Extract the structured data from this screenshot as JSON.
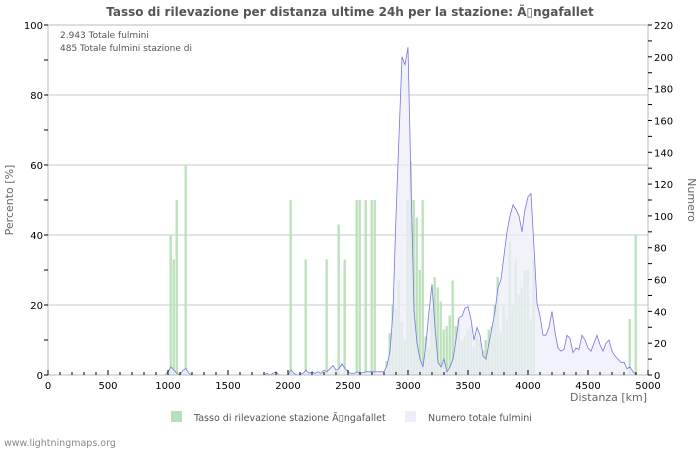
{
  "chart_data": {
    "type": "bar",
    "title": "Tasso di rilevazione per distanza ultime 24h per la stazione: Ã▯ngafallet",
    "xlabel": "Distanza   [km]",
    "ylabel": "Percento   [%]",
    "y2label": "Numero",
    "xlim": [
      0,
      5000
    ],
    "ylim": [
      0,
      100
    ],
    "y2lim": [
      0,
      220
    ],
    "x_ticks": [
      0,
      500,
      1000,
      1500,
      2000,
      2500,
      3000,
      3500,
      4000,
      4500,
      5000
    ],
    "y_ticks": [
      0,
      20,
      40,
      60,
      80,
      100
    ],
    "y2_ticks": [
      0,
      20,
      40,
      60,
      80,
      100,
      120,
      140,
      160,
      180,
      200,
      220
    ],
    "grid": true,
    "legend_position": "bottom",
    "bin_width_km": 25,
    "series": [
      {
        "name": "Tasso di rilevazione stazione Ã▯ngafallet",
        "type": "bar",
        "axis": "left",
        "color": "#b8e0b8",
        "points": [
          [
            1025,
            40
          ],
          [
            1050,
            33
          ],
          [
            1075,
            50
          ],
          [
            1150,
            60
          ],
          [
            2025,
            50
          ],
          [
            2150,
            33
          ],
          [
            2325,
            33
          ],
          [
            2425,
            43
          ],
          [
            2475,
            33
          ],
          [
            2575,
            50
          ],
          [
            2600,
            50
          ],
          [
            2650,
            50
          ],
          [
            2700,
            50
          ],
          [
            2725,
            50
          ],
          [
            2825,
            4
          ],
          [
            2850,
            12
          ],
          [
            2875,
            20
          ],
          [
            2900,
            19
          ],
          [
            2925,
            27
          ],
          [
            2950,
            15
          ],
          [
            2975,
            10
          ],
          [
            3000,
            50
          ],
          [
            3025,
            61
          ],
          [
            3050,
            50
          ],
          [
            3075,
            45
          ],
          [
            3100,
            30
          ],
          [
            3125,
            50
          ],
          [
            3150,
            11
          ],
          [
            3175,
            8
          ],
          [
            3200,
            19
          ],
          [
            3225,
            28
          ],
          [
            3250,
            25
          ],
          [
            3275,
            21
          ],
          [
            3300,
            13
          ],
          [
            3325,
            14
          ],
          [
            3350,
            17
          ],
          [
            3375,
            27
          ],
          [
            3400,
            14
          ],
          [
            3425,
            16
          ],
          [
            3450,
            10
          ],
          [
            3475,
            11
          ],
          [
            3500,
            13
          ],
          [
            3525,
            14
          ],
          [
            3550,
            8
          ],
          [
            3575,
            11
          ],
          [
            3600,
            10
          ],
          [
            3625,
            7
          ],
          [
            3650,
            10
          ],
          [
            3675,
            13
          ],
          [
            3700,
            14
          ],
          [
            3725,
            20
          ],
          [
            3750,
            28
          ],
          [
            3775,
            12
          ],
          [
            3800,
            20
          ],
          [
            3825,
            16
          ],
          [
            3850,
            38
          ],
          [
            3875,
            20
          ],
          [
            3900,
            33
          ],
          [
            3925,
            23
          ],
          [
            3950,
            25
          ],
          [
            3975,
            30
          ],
          [
            4000,
            30
          ],
          [
            4025,
            16
          ],
          [
            4050,
            33
          ],
          [
            4850,
            16
          ],
          [
            4900,
            40
          ]
        ]
      },
      {
        "name": "Numero totale fulmini",
        "type": "area",
        "axis": "right",
        "color": "#7777dd",
        "fill": "#eeeefa",
        "points": [
          [
            0,
            0
          ],
          [
            975,
            0
          ],
          [
            1000,
            2
          ],
          [
            1025,
            5
          ],
          [
            1050,
            3
          ],
          [
            1075,
            1
          ],
          [
            1100,
            0
          ],
          [
            1125,
            3
          ],
          [
            1150,
            4
          ],
          [
            1175,
            1
          ],
          [
            1200,
            0
          ],
          [
            1800,
            0
          ],
          [
            1825,
            1
          ],
          [
            1850,
            0
          ],
          [
            1875,
            1
          ],
          [
            1900,
            2
          ],
          [
            1925,
            0
          ],
          [
            2000,
            0
          ],
          [
            2025,
            3
          ],
          [
            2050,
            1
          ],
          [
            2075,
            0
          ],
          [
            2125,
            1
          ],
          [
            2150,
            3
          ],
          [
            2175,
            1
          ],
          [
            2200,
            2
          ],
          [
            2225,
            1
          ],
          [
            2250,
            2
          ],
          [
            2275,
            1
          ],
          [
            2300,
            3
          ],
          [
            2325,
            2
          ],
          [
            2350,
            4
          ],
          [
            2375,
            6
          ],
          [
            2400,
            3
          ],
          [
            2425,
            4
          ],
          [
            2450,
            7
          ],
          [
            2475,
            4
          ],
          [
            2500,
            2
          ],
          [
            2525,
            1
          ],
          [
            2550,
            1
          ],
          [
            2575,
            2
          ],
          [
            2600,
            1
          ],
          [
            2650,
            2
          ],
          [
            2700,
            2
          ],
          [
            2750,
            2
          ],
          [
            2800,
            2
          ],
          [
            2825,
            6
          ],
          [
            2850,
            15
          ],
          [
            2875,
            40
          ],
          [
            2900,
            100
          ],
          [
            2925,
            150
          ],
          [
            2950,
            200
          ],
          [
            2975,
            195
          ],
          [
            3000,
            206
          ],
          [
            3025,
            120
          ],
          [
            3050,
            40
          ],
          [
            3075,
            20
          ],
          [
            3100,
            10
          ],
          [
            3125,
            5
          ],
          [
            3150,
            20
          ],
          [
            3175,
            40
          ],
          [
            3200,
            57
          ],
          [
            3225,
            30
          ],
          [
            3250,
            8
          ],
          [
            3275,
            5
          ],
          [
            3300,
            10
          ],
          [
            3325,
            2
          ],
          [
            3350,
            5
          ],
          [
            3375,
            10
          ],
          [
            3400,
            22
          ],
          [
            3425,
            36
          ],
          [
            3450,
            37
          ],
          [
            3475,
            42
          ],
          [
            3500,
            43
          ],
          [
            3525,
            35
          ],
          [
            3550,
            22
          ],
          [
            3575,
            30
          ],
          [
            3600,
            25
          ],
          [
            3625,
            12
          ],
          [
            3650,
            10
          ],
          [
            3675,
            20
          ],
          [
            3700,
            30
          ],
          [
            3725,
            40
          ],
          [
            3750,
            55
          ],
          [
            3775,
            60
          ],
          [
            3800,
            75
          ],
          [
            3825,
            90
          ],
          [
            3850,
            100
          ],
          [
            3875,
            107
          ],
          [
            3900,
            104
          ],
          [
            3925,
            100
          ],
          [
            3950,
            90
          ],
          [
            3975,
            104
          ],
          [
            4000,
            112
          ],
          [
            4025,
            114
          ],
          [
            4050,
            80
          ],
          [
            4075,
            45
          ],
          [
            4100,
            37
          ],
          [
            4125,
            25
          ],
          [
            4150,
            25
          ],
          [
            4175,
            30
          ],
          [
            4200,
            40
          ],
          [
            4225,
            27
          ],
          [
            4250,
            17
          ],
          [
            4275,
            15
          ],
          [
            4300,
            16
          ],
          [
            4325,
            25
          ],
          [
            4350,
            23
          ],
          [
            4375,
            14
          ],
          [
            4400,
            17
          ],
          [
            4425,
            16
          ],
          [
            4450,
            25
          ],
          [
            4475,
            22
          ],
          [
            4500,
            17
          ],
          [
            4525,
            15
          ],
          [
            4550,
            20
          ],
          [
            4575,
            25
          ],
          [
            4600,
            19
          ],
          [
            4625,
            15
          ],
          [
            4650,
            20
          ],
          [
            4675,
            22
          ],
          [
            4700,
            15
          ],
          [
            4725,
            12
          ],
          [
            4750,
            10
          ],
          [
            4775,
            8
          ],
          [
            4800,
            8
          ],
          [
            4825,
            4
          ],
          [
            4850,
            5
          ],
          [
            4875,
            2
          ],
          [
            4900,
            0
          ],
          [
            4950,
            0
          ],
          [
            5000,
            0
          ]
        ]
      }
    ],
    "annotations": [
      "2.943 Totale fulmini",
      "485 Totale fulmini stazione di"
    ]
  },
  "header": {
    "title": "Tasso di rilevazione per distanza ultime 24h per la stazione: Ã▯ngafallet"
  },
  "info": {
    "line1": "2.943 Totale fulmini",
    "line2": "485 Totale fulmini stazione di"
  },
  "axes": {
    "left_title": "Percento   [%]",
    "right_title": "Numero",
    "bottom_title": "Distanza   [km]"
  },
  "legend": {
    "item1": "Tasso di rilevazione stazione Ã▯ngafallet",
    "item2": "Numero totale fulmini"
  },
  "footer": {
    "text": "www.lightningmaps.org"
  },
  "colors": {
    "bar": "#b8e0b8",
    "line": "#7777dd",
    "area": "#eeeefa",
    "grid": "#c8c8c8",
    "axis": "#bbbbbb"
  }
}
